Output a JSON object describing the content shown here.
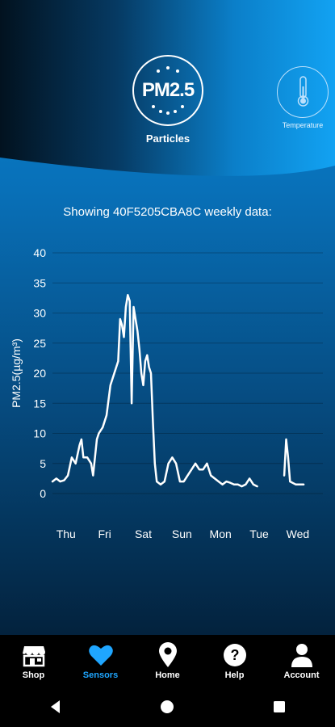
{
  "sensors": {
    "pm25": {
      "icon_text": "PM2.5",
      "label": "Particles"
    },
    "temperature": {
      "label": "Temperature"
    }
  },
  "chart": {
    "title": "Showing 40F5205CBA8C weekly data:"
  },
  "chart_data": {
    "type": "line",
    "ylabel": "PM2.5(µg/m³)",
    "ylim": [
      0,
      40
    ],
    "yticks": [
      0,
      5,
      10,
      15,
      20,
      25,
      30,
      35,
      40
    ],
    "categories": [
      "Thu",
      "Fri",
      "Sat",
      "Sun",
      "Mon",
      "Tue",
      "Wed"
    ],
    "xlim": [
      0,
      7
    ],
    "grid": true,
    "series": [
      {
        "segments": [
          [
            [
              0,
              2
            ],
            [
              0.1,
              2.5
            ],
            [
              0.2,
              2
            ],
            [
              0.3,
              2.2
            ],
            [
              0.4,
              3
            ],
            [
              0.5,
              6
            ],
            [
              0.6,
              5
            ],
            [
              0.7,
              8
            ],
            [
              0.75,
              9
            ],
            [
              0.8,
              6
            ],
            [
              0.9,
              6
            ],
            [
              1.0,
              5
            ],
            [
              1.05,
              3
            ],
            [
              1.15,
              9
            ],
            [
              1.2,
              10
            ],
            [
              1.3,
              11
            ],
            [
              1.4,
              13
            ],
            [
              1.5,
              18
            ],
            [
              1.6,
              20
            ],
            [
              1.7,
              22
            ],
            [
              1.75,
              29
            ],
            [
              1.8,
              28
            ],
            [
              1.85,
              26
            ],
            [
              1.9,
              31
            ],
            [
              1.95,
              33
            ],
            [
              2.0,
              32
            ],
            [
              2.05,
              15
            ],
            [
              2.1,
              31
            ],
            [
              2.15,
              29
            ],
            [
              2.2,
              27
            ],
            [
              2.25,
              24
            ],
            [
              2.3,
              20
            ],
            [
              2.35,
              18
            ],
            [
              2.4,
              22
            ],
            [
              2.45,
              23
            ],
            [
              2.5,
              21
            ],
            [
              2.55,
              20
            ],
            [
              2.6,
              12
            ],
            [
              2.65,
              5
            ],
            [
              2.7,
              2
            ],
            [
              2.8,
              1.5
            ],
            [
              2.9,
              2
            ],
            [
              3.0,
              5
            ],
            [
              3.1,
              6
            ],
            [
              3.2,
              5
            ],
            [
              3.3,
              2
            ],
            [
              3.4,
              2
            ],
            [
              3.5,
              3
            ],
            [
              3.6,
              4
            ],
            [
              3.7,
              5
            ],
            [
              3.8,
              4
            ],
            [
              3.9,
              4
            ],
            [
              4.0,
              5
            ],
            [
              4.1,
              3
            ],
            [
              4.2,
              2.5
            ],
            [
              4.3,
              2
            ],
            [
              4.4,
              1.5
            ],
            [
              4.5,
              2
            ],
            [
              4.6,
              1.8
            ],
            [
              4.7,
              1.5
            ],
            [
              4.8,
              1.5
            ],
            [
              4.9,
              1.2
            ],
            [
              5.0,
              1.5
            ],
            [
              5.1,
              2.5
            ],
            [
              5.2,
              1.5
            ],
            [
              5.3,
              1.2
            ]
          ],
          [
            [
              6.0,
              3
            ],
            [
              6.05,
              9
            ],
            [
              6.1,
              6
            ],
            [
              6.15,
              2
            ],
            [
              6.3,
              1.5
            ],
            [
              6.5,
              1.5
            ]
          ]
        ]
      }
    ]
  },
  "nav": {
    "items": [
      {
        "label": "Shop",
        "icon": "shop-icon"
      },
      {
        "label": "Sensors",
        "icon": "heart-icon"
      },
      {
        "label": "Home",
        "icon": "map-pin-icon"
      },
      {
        "label": "Help",
        "icon": "help-icon"
      },
      {
        "label": "Account",
        "icon": "account-icon"
      }
    ]
  },
  "colors": {
    "accent": "#1fa6ff",
    "line": "#ffffff"
  }
}
